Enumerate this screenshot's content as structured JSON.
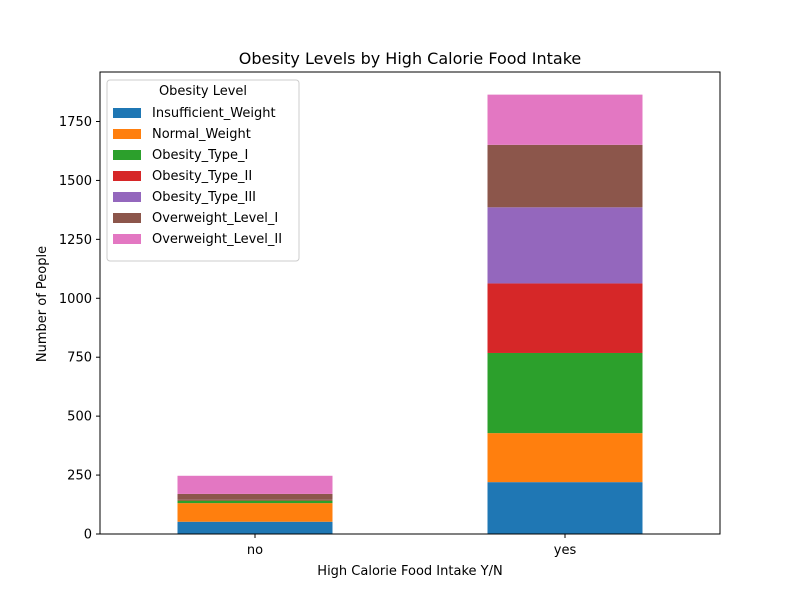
{
  "chart_data": {
    "type": "bar",
    "stacked": true,
    "title": "Obesity Levels by High Calorie Food Intake",
    "xlabel": "High Calorie Food Intake Y/N",
    "ylabel": "Number of People",
    "categories": [
      "no",
      "yes"
    ],
    "ylim": [
      0,
      1960
    ],
    "yticks": [
      0,
      250,
      500,
      750,
      1000,
      1250,
      1500,
      1750
    ],
    "legend": {
      "title": "Obesity Level",
      "position": "top-left"
    },
    "grid": false,
    "series": [
      {
        "name": "Insufficient_Weight",
        "color": "#1f77b4",
        "values": [
          52,
          220
        ]
      },
      {
        "name": "Normal_Weight",
        "color": "#ff7f0e",
        "values": [
          79,
          208
        ]
      },
      {
        "name": "Obesity_Type_I",
        "color": "#2ca02c",
        "values": [
          11,
          340
        ]
      },
      {
        "name": "Obesity_Type_II",
        "color": "#d62728",
        "values": [
          2,
          295
        ]
      },
      {
        "name": "Obesity_Type_III",
        "color": "#9467bd",
        "values": [
          1,
          323
        ]
      },
      {
        "name": "Overweight_Level_I",
        "color": "#8c564b",
        "values": [
          25,
          265
        ]
      },
      {
        "name": "Overweight_Level_II",
        "color": "#e377c2",
        "values": [
          77,
          213
        ]
      }
    ]
  }
}
